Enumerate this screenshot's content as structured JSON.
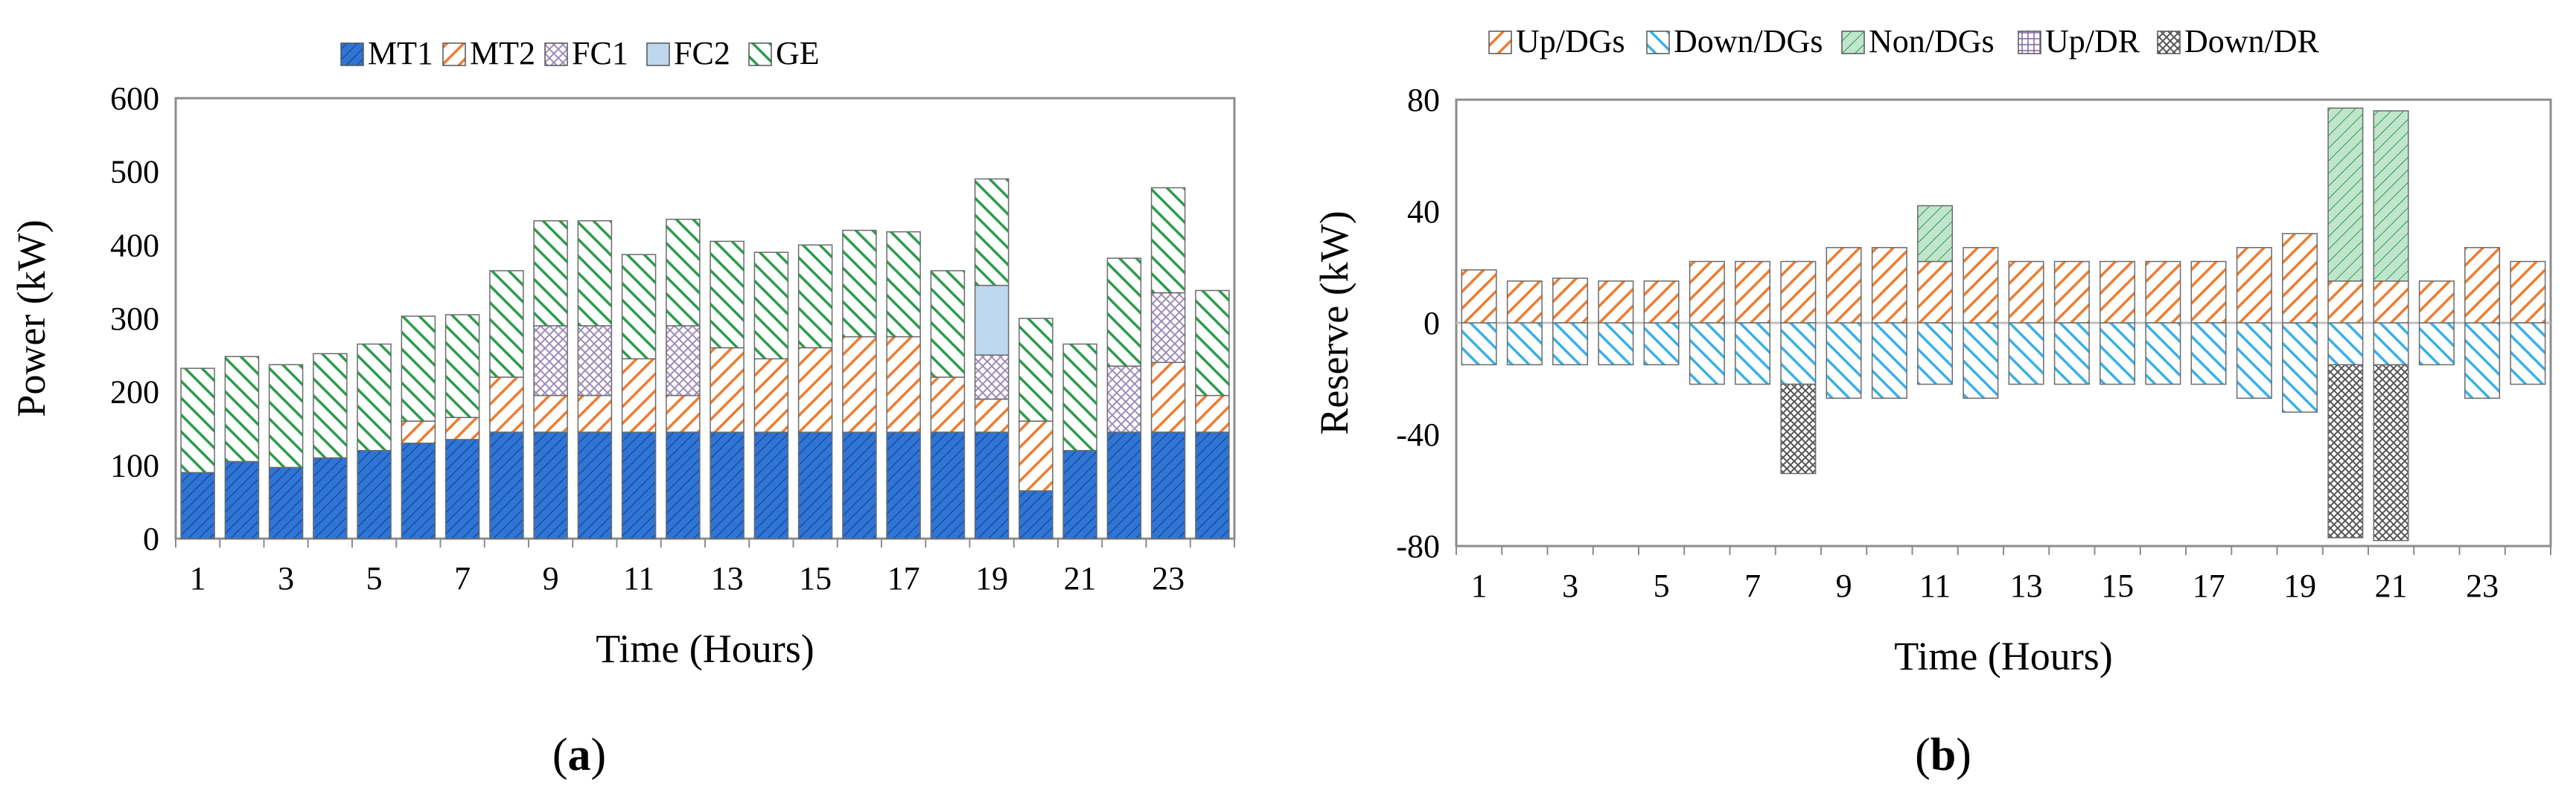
{
  "chart_data": [
    {
      "id": "a",
      "type": "bar",
      "stacked": true,
      "panel_label": "(a)",
      "panel_label_letter": "a",
      "xlabel": "Time (Hours)",
      "ylabel": "Power (kW)",
      "ylim": [
        0,
        600
      ],
      "yticks": [
        0,
        100,
        200,
        300,
        400,
        500,
        600
      ],
      "xtick_labels": [
        "1",
        "3",
        "5",
        "7",
        "9",
        "11",
        "13",
        "15",
        "17",
        "19",
        "21",
        "23"
      ],
      "xtick_indices": [
        0,
        2,
        4,
        6,
        8,
        10,
        12,
        14,
        16,
        18,
        20,
        22
      ],
      "categories": [
        1,
        2,
        3,
        4,
        5,
        6,
        7,
        8,
        9,
        10,
        11,
        12,
        13,
        14,
        15,
        16,
        17,
        18,
        19,
        20,
        21,
        22,
        23,
        24
      ],
      "legend_position": "top",
      "grid": false,
      "series": [
        {
          "name": "MT1",
          "color": "#2E75D6",
          "pattern": "diag-fine",
          "values": [
            90,
            105,
            97,
            110,
            120,
            130,
            135,
            145,
            145,
            145,
            145,
            145,
            145,
            145,
            145,
            145,
            145,
            145,
            145,
            65,
            120,
            145,
            145,
            145
          ]
        },
        {
          "name": "MT2",
          "color": "#ED7D31",
          "pattern": "diag",
          "values": [
            0,
            0,
            0,
            0,
            0,
            30,
            30,
            75,
            50,
            50,
            100,
            50,
            115,
            100,
            115,
            130,
            130,
            75,
            45,
            95,
            0,
            0,
            95,
            50
          ]
        },
        {
          "name": "FC1",
          "color": "#9E8BB8",
          "pattern": "cross",
          "values": [
            0,
            0,
            0,
            0,
            0,
            0,
            0,
            0,
            95,
            95,
            0,
            95,
            0,
            0,
            0,
            0,
            0,
            0,
            60,
            0,
            0,
            90,
            95,
            0
          ]
        },
        {
          "name": "FC2",
          "color": "#BDD7EE",
          "pattern": "solid",
          "values": [
            0,
            0,
            0,
            0,
            0,
            0,
            0,
            0,
            0,
            0,
            0,
            0,
            0,
            0,
            0,
            0,
            0,
            0,
            95,
            0,
            0,
            0,
            0,
            0
          ]
        },
        {
          "name": "GE",
          "color": "#2E9B4E",
          "pattern": "anti-diag",
          "values": [
            142,
            143,
            140,
            142,
            145,
            143,
            140,
            145,
            143,
            143,
            142,
            145,
            145,
            145,
            140,
            145,
            143,
            145,
            145,
            140,
            145,
            147,
            143,
            143
          ]
        }
      ]
    },
    {
      "id": "b",
      "type": "bar",
      "stacked": true,
      "panel_label": "(b)",
      "panel_label_letter": "b",
      "xlabel": "Time (Hours)",
      "ylabel": "Reserve (kW)",
      "ylim": [
        -80,
        80
      ],
      "yticks": [
        -80,
        -40,
        0,
        40,
        80
      ],
      "xtick_labels": [
        "1",
        "3",
        "5",
        "7",
        "9",
        "11",
        "13",
        "15",
        "17",
        "19",
        "21",
        "23"
      ],
      "xtick_indices": [
        0,
        2,
        4,
        6,
        8,
        10,
        12,
        14,
        16,
        18,
        20,
        22
      ],
      "categories": [
        1,
        2,
        3,
        4,
        5,
        6,
        7,
        8,
        9,
        10,
        11,
        12,
        13,
        14,
        15,
        16,
        17,
        18,
        19,
        20,
        21,
        22,
        23,
        24
      ],
      "legend_position": "top",
      "grid": false,
      "series": [
        {
          "name": "Up/DGs",
          "color": "#ED7D31",
          "pattern": "diag",
          "values": [
            19,
            15,
            16,
            15,
            15,
            22,
            22,
            22,
            27,
            27,
            22,
            27,
            22,
            22,
            22,
            22,
            22,
            27,
            32,
            15,
            15,
            15,
            27,
            22
          ]
        },
        {
          "name": "Down/DGs",
          "color": "#3BB0E8",
          "pattern": "anti-diag",
          "values": [
            -15,
            -15,
            -15,
            -15,
            -15,
            -22,
            -22,
            -22,
            -27,
            -27,
            -22,
            -27,
            -22,
            -22,
            -22,
            -22,
            -22,
            -27,
            -32,
            -15,
            -15,
            -15,
            -27,
            -22
          ]
        },
        {
          "name": "Non/DGs",
          "color": "#2E9B4E",
          "pattern": "diag-light",
          "values": [
            0,
            0,
            0,
            0,
            0,
            0,
            0,
            0,
            0,
            0,
            20,
            0,
            0,
            0,
            0,
            0,
            0,
            0,
            0,
            62,
            61,
            0,
            0,
            0
          ]
        },
        {
          "name": "Up/DR",
          "color": "#8064A2",
          "pattern": "grid",
          "values": [
            0,
            0,
            0,
            0,
            0,
            0,
            0,
            0,
            0,
            0,
            0,
            0,
            0,
            0,
            0,
            0,
            0,
            0,
            0,
            0,
            0,
            0,
            0,
            0
          ]
        },
        {
          "name": "Down/DR",
          "color": "#555555",
          "pattern": "cross",
          "values": [
            0,
            0,
            0,
            0,
            0,
            0,
            0,
            -32,
            0,
            0,
            0,
            0,
            0,
            0,
            0,
            0,
            0,
            0,
            0,
            -62,
            -63,
            0,
            0,
            0
          ]
        }
      ]
    }
  ]
}
